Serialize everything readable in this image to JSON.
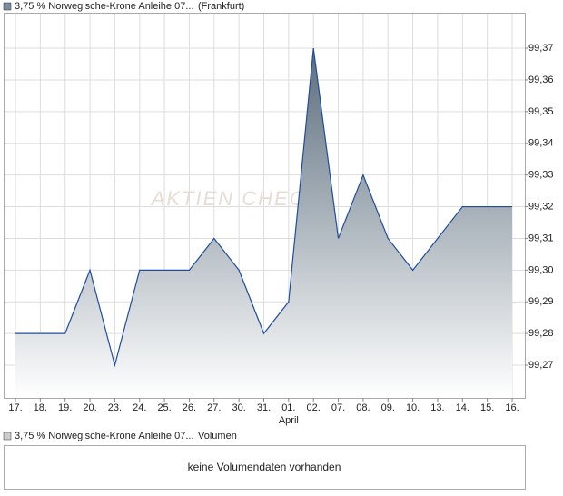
{
  "chart_data": {
    "type": "area",
    "title": "3,75 % Norwegische-Krone Anleihe 07...",
    "subtitle": "(Frankfurt)",
    "watermark": "AKTIEN CHECK",
    "categories": [
      "17.",
      "18.",
      "19.",
      "20.",
      "23.",
      "24.",
      "25.",
      "26.",
      "27.",
      "30.",
      "31.",
      "01.",
      "02.",
      "07.",
      "08.",
      "09.",
      "10.",
      "13.",
      "14.",
      "15.",
      "16."
    ],
    "month_labels": [
      null,
      null,
      null,
      null,
      null,
      null,
      null,
      null,
      null,
      null,
      null,
      "April",
      null,
      null,
      null,
      null,
      null,
      null,
      null,
      null,
      null
    ],
    "values": [
      99.28,
      99.28,
      99.28,
      99.3,
      99.27,
      99.3,
      99.3,
      99.3,
      99.31,
      99.3,
      99.28,
      99.29,
      99.37,
      99.31,
      99.33,
      99.31,
      99.3,
      99.31,
      99.32,
      99.32,
      99.32
    ],
    "color": "#1f4e9c",
    "ylim": [
      99.2597,
      99.3809
    ],
    "yticks": [
      {
        "value": 99.27,
        "label": "99,27"
      },
      {
        "value": 99.28,
        "label": "99,28"
      },
      {
        "value": 99.29,
        "label": "99,29"
      },
      {
        "value": 99.3,
        "label": "99,30"
      },
      {
        "value": 99.31,
        "label": "99,31"
      },
      {
        "value": 99.32,
        "label": "99,32"
      },
      {
        "value": 99.33,
        "label": "99,33"
      },
      {
        "value": 99.34,
        "label": "99,34"
      },
      {
        "value": 99.35,
        "label": "99,35"
      },
      {
        "value": 99.36,
        "label": "99,36"
      },
      {
        "value": 99.37,
        "label": "99,37"
      }
    ],
    "grid": true
  },
  "volume_panel": {
    "title": "3,75 % Norwegische-Krone Anleihe 07...",
    "subtitle": "Volumen",
    "message": "keine Volumendaten vorhanden"
  }
}
